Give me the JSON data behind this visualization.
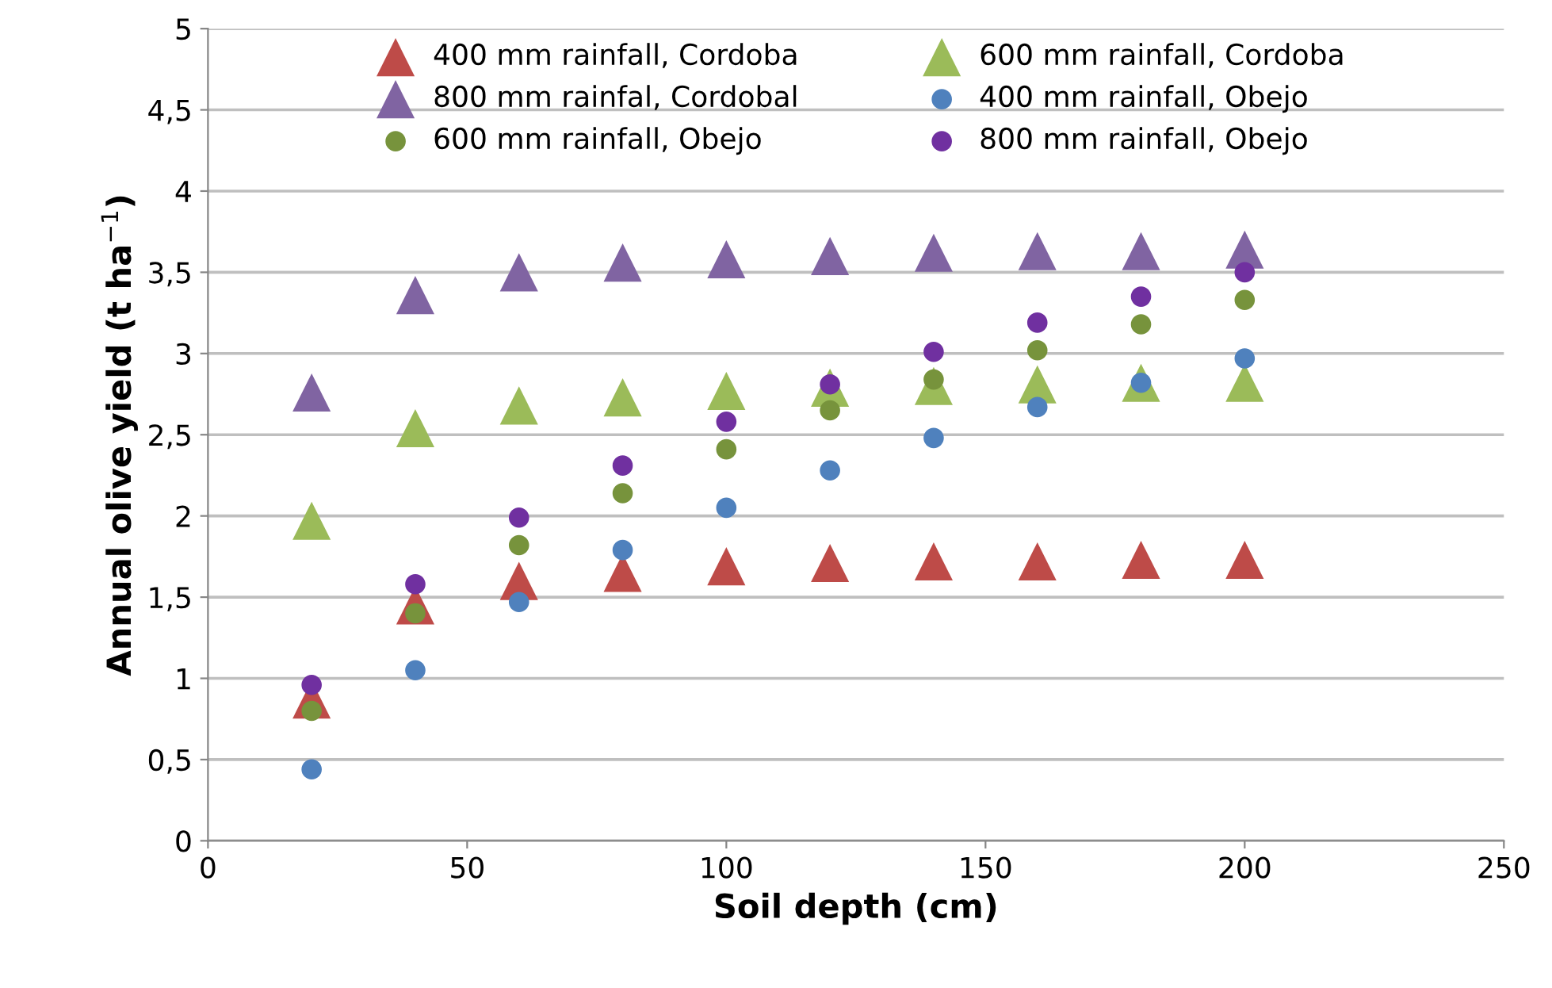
{
  "chart_data": {
    "type": "scatter",
    "xlabel": "Soil depth (cm)",
    "ylabel": "Annual olive yield (t ha$^{−1}$)",
    "x": [
      20,
      40,
      60,
      80,
      100,
      120,
      140,
      160,
      180,
      200
    ],
    "series": [
      {
        "name": "400 mm rainfall, Cordoba",
        "color": "#be4b48",
        "marker": "triangle",
        "values": [
          0.87,
          1.45,
          1.6,
          1.65,
          1.69,
          1.71,
          1.72,
          1.72,
          1.73,
          1.73
        ]
      },
      {
        "name": "600 mm rainfall, Cordoba",
        "color": "#9bbb59",
        "marker": "triangle",
        "values": [
          1.97,
          2.54,
          2.68,
          2.73,
          2.77,
          2.79,
          2.8,
          2.81,
          2.82,
          2.82
        ]
      },
      {
        "name": "800 mm rainfal, Cordobal",
        "color": "#8064a2",
        "marker": "triangle",
        "values": [
          2.76,
          3.36,
          3.5,
          3.56,
          3.58,
          3.6,
          3.62,
          3.63,
          3.63,
          3.64
        ]
      },
      {
        "name": "400 mm rainfall, Obejo",
        "color": "#4f81bd",
        "marker": "circle",
        "values": [
          0.44,
          1.05,
          1.47,
          1.79,
          2.05,
          2.28,
          2.48,
          2.67,
          2.82,
          2.97
        ]
      },
      {
        "name": "600 mm rainfall, Obejo",
        "color": "#77933c",
        "marker": "circle",
        "values": [
          0.8,
          1.4,
          1.82,
          2.14,
          2.41,
          2.65,
          2.84,
          3.02,
          3.18,
          3.33
        ]
      },
      {
        "name": "800 mm rainfall, Obejo",
        "color": "#7030a0",
        "marker": "circle",
        "values": [
          0.96,
          1.58,
          1.99,
          2.31,
          2.58,
          2.81,
          3.01,
          3.19,
          3.35,
          3.5
        ]
      }
    ],
    "xlim": [
      0,
      250
    ],
    "xticks": [
      0,
      50,
      100,
      150,
      200,
      250
    ],
    "ylim": [
      0,
      5
    ],
    "yticks": [
      0,
      {
        "value": 0.5,
        "label": "0,5"
      },
      1,
      {
        "value": 1.5,
        "label": "1,5"
      },
      2,
      {
        "value": 2.5,
        "label": "2,5"
      },
      3,
      {
        "value": 3.5,
        "label": "3,5"
      },
      4,
      {
        "value": 4.5,
        "label": "4,5"
      },
      5
    ],
    "grid": "y",
    "legend": "top"
  }
}
